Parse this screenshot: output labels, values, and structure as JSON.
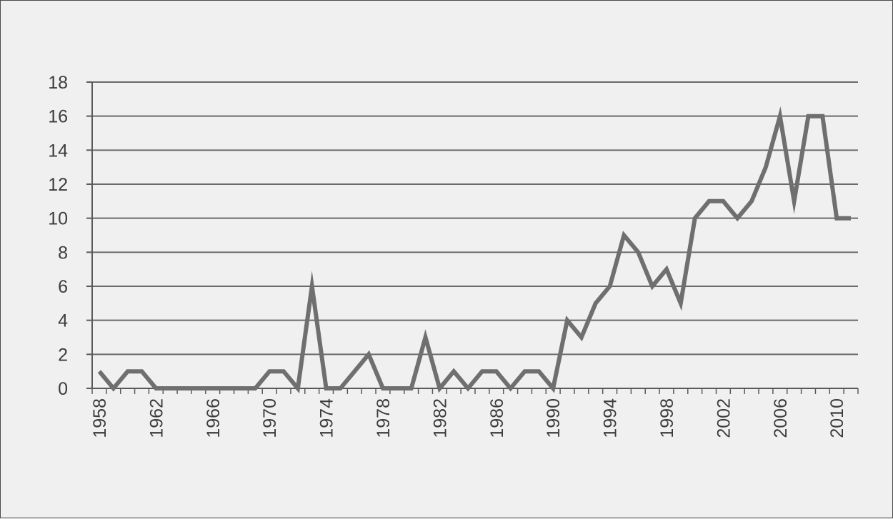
{
  "chart_data": {
    "type": "line",
    "title": "",
    "xlabel": "",
    "ylabel": "",
    "grid": true,
    "legend": "none",
    "xlim": [
      1958,
      2011
    ],
    "ylim": [
      0,
      18
    ],
    "x_ticks": [
      1958,
      1962,
      1966,
      1970,
      1974,
      1978,
      1982,
      1986,
      1990,
      1994,
      1998,
      2002,
      2006,
      2010
    ],
    "y_ticks": [
      0,
      2,
      4,
      6,
      8,
      10,
      12,
      14,
      16,
      18
    ],
    "colors": {
      "line": "#6f6f6f",
      "grid": "#6a6a6a",
      "axis": "#5a5a5a",
      "text": "#3c3c3c"
    },
    "series": [
      {
        "x": [
          1958,
          1959,
          1960,
          1961,
          1962,
          1963,
          1964,
          1965,
          1966,
          1967,
          1968,
          1969,
          1970,
          1971,
          1972,
          1973,
          1974,
          1975,
          1976,
          1977,
          1978,
          1979,
          1980,
          1981,
          1982,
          1983,
          1984,
          1985,
          1986,
          1987,
          1988,
          1989,
          1990,
          1991,
          1992,
          1993,
          1994,
          1995,
          1996,
          1997,
          1998,
          1999,
          2000,
          2001,
          2002,
          2003,
          2004,
          2005,
          2006,
          2007,
          2008,
          2009,
          2010,
          2011
        ],
        "values": [
          1,
          0,
          1,
          1,
          0,
          0,
          0,
          0,
          0,
          0,
          0,
          0,
          1,
          1,
          0,
          6,
          0,
          0,
          1,
          2,
          0,
          0,
          0,
          3,
          0,
          1,
          0,
          1,
          1,
          0,
          1,
          1,
          0,
          4,
          3,
          5,
          6,
          9,
          8,
          6,
          7,
          5,
          10,
          11,
          11,
          10,
          11,
          13,
          16,
          11,
          16,
          16,
          10,
          10
        ]
      }
    ]
  }
}
